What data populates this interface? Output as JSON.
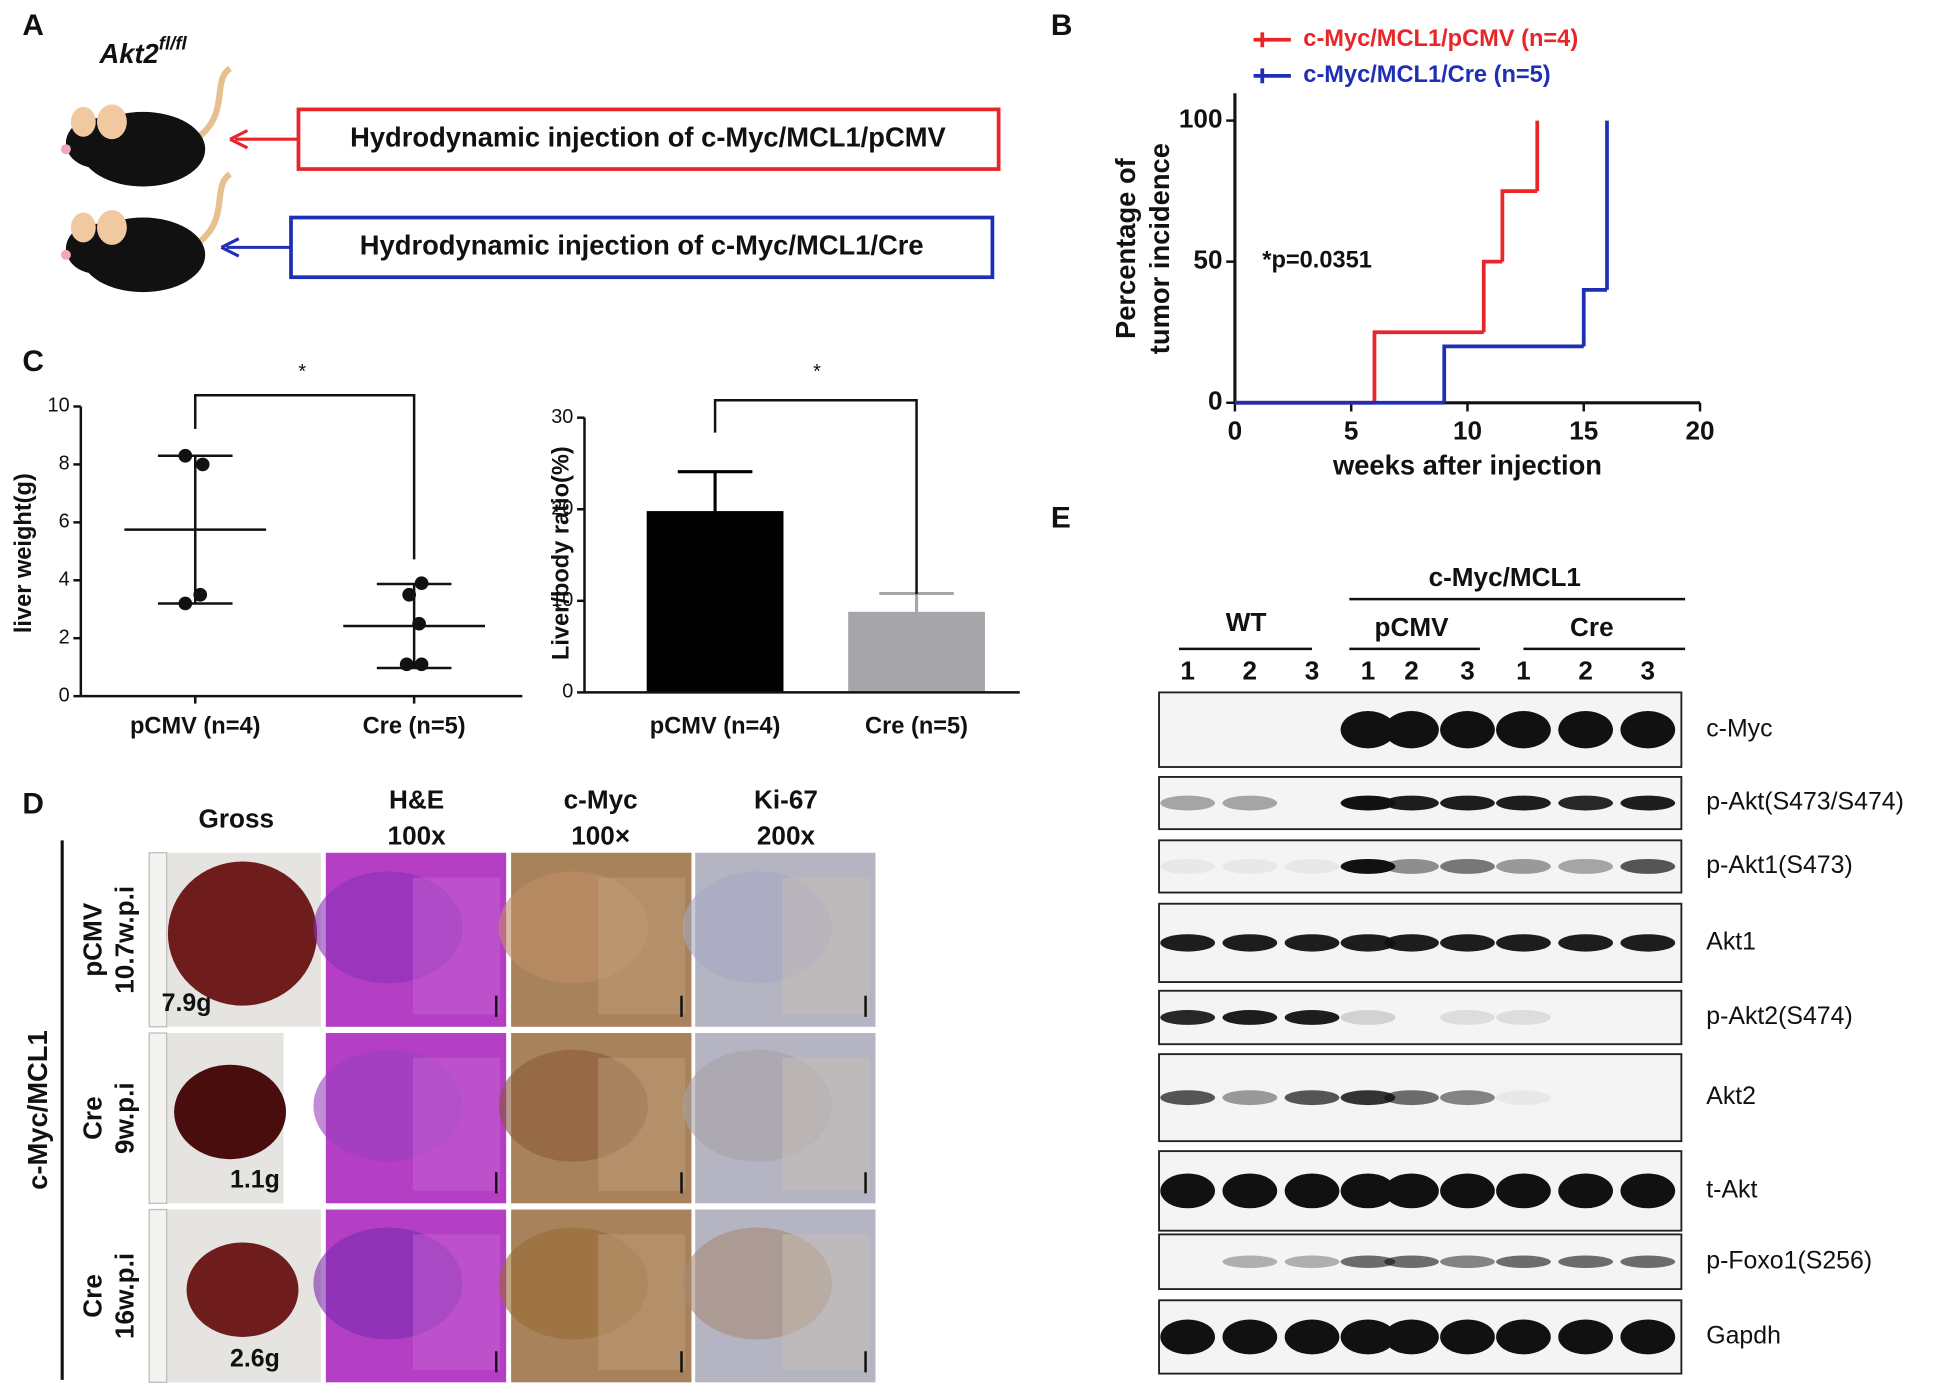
{
  "panel_labels": [
    "A",
    "B",
    "C",
    "D",
    "E"
  ],
  "panel_a": {
    "mouse_label": "Akt2",
    "mouse_label_sup": "fl/fl",
    "boxes": [
      "Hydrodynamic  injection of c-Myc/MCL1/pCMV",
      "Hydrodynamic  injection of c-Myc/MCL1/Cre"
    ]
  },
  "chart_data": [
    {
      "type": "line",
      "step": true,
      "xlabel": "weeks after injection",
      "ylabel": [
        "Percentage of",
        "tumor incidence"
      ],
      "annotation": "*p=0.0351",
      "xlim": [
        0,
        20
      ],
      "xticks": [
        0,
        5,
        10,
        15,
        20
      ],
      "ylim": [
        0,
        100
      ],
      "yticks": [
        0,
        50,
        100
      ],
      "series": [
        {
          "name": "c-Myc/MCL1/pCMV (n=4)",
          "color": "#e8262a",
          "x": [
            0,
            6,
            10.7,
            11.5,
            13
          ],
          "values": [
            0,
            25,
            50,
            75,
            100
          ]
        },
        {
          "name": "c-Myc/MCL1/Cre (n=5)",
          "color": "#1f2fb5",
          "x": [
            0,
            9,
            15,
            16
          ],
          "values": [
            0,
            20,
            40,
            100
          ]
        }
      ]
    },
    {
      "type": "scatter",
      "ylabel": "liver weight(g)",
      "annotation": "*",
      "categories": [
        "pCMV (n=4)",
        "Cre (n=5)"
      ],
      "ylim": [
        0,
        10
      ],
      "yticks": [
        0,
        2,
        4,
        6,
        8,
        10
      ],
      "groups": [
        {
          "values": [
            8.3,
            8.0,
            3.5,
            3.2
          ],
          "mean": 5.75,
          "sd": 2.55
        },
        {
          "values": [
            3.9,
            3.5,
            2.5,
            1.1,
            1.1
          ],
          "mean": 2.42,
          "sd": 1.45
        }
      ]
    },
    {
      "type": "bar",
      "ylabel": "Liver/body ratio(%)",
      "annotation": "*",
      "categories": [
        "pCMV (n=4)",
        "Cre (n=5)"
      ],
      "values": [
        19.8,
        8.8
      ],
      "errors": [
        4.3,
        2.0
      ],
      "colors": [
        "#000000",
        "#a6a6aa"
      ],
      "ylim": [
        0,
        30
      ],
      "yticks": [
        0,
        10,
        20,
        30
      ]
    }
  ],
  "panel_d": {
    "group": "c-Myc/MCL1",
    "columns": [
      "Gross",
      "H&E",
      "c-Myc",
      "Ki-67"
    ],
    "magnifications": [
      "100x",
      "100×",
      "200x"
    ],
    "rows": [
      {
        "group": "pCMV",
        "time": "10.7w.p.i",
        "weight": "7.9g"
      },
      {
        "group": "Cre",
        "time": "9w.p.i",
        "weight": "1.1g"
      },
      {
        "group": "Cre",
        "time": "16w.p.i",
        "weight": "2.6g"
      }
    ]
  },
  "panel_e": {
    "group": "c-Myc/MCL1",
    "subgroups": [
      "WT",
      "pCMV",
      "Cre"
    ],
    "lanes": [
      "1",
      "2",
      "3",
      "1",
      "2",
      "3",
      "1",
      "2",
      "3"
    ],
    "proteins": [
      "c-Myc",
      "p-Akt(S473/S474)",
      "p-Akt1(S473)",
      "Akt1",
      "p-Akt2(S474)",
      "Akt2",
      "t-Akt",
      "p-Foxo1(S256)",
      "Gapdh"
    ]
  }
}
